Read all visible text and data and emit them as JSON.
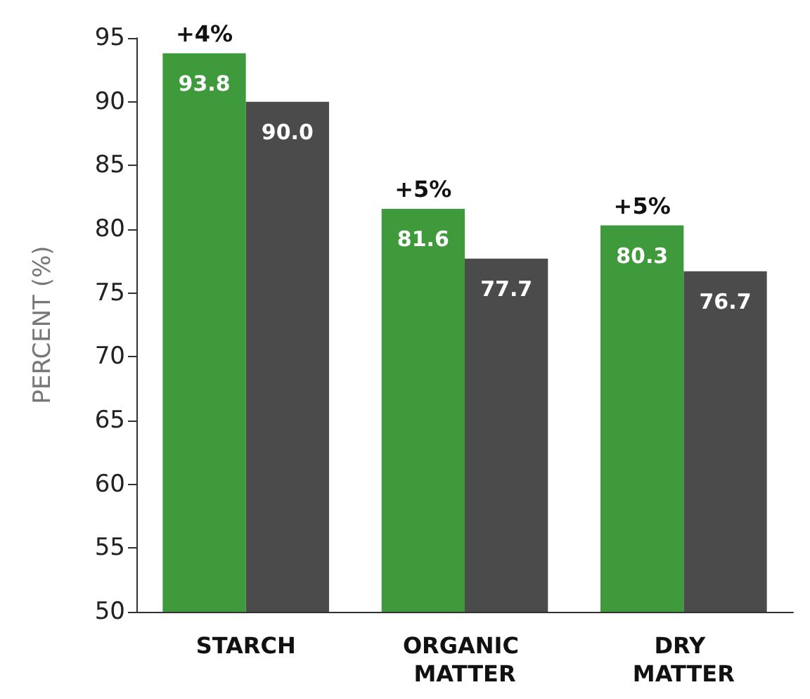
{
  "chart_data": {
    "type": "bar",
    "ylabel": "PERCENT (%)",
    "categories": [
      "STARCH",
      "ORGANIC MATTER",
      "DRY MATTER"
    ],
    "series": [
      {
        "color": "#3e9a3b",
        "values": [
          93.8,
          81.6,
          80.3
        ],
        "value_labels": [
          "93.8",
          "81.6",
          "80.3"
        ]
      },
      {
        "color": "#4b4b4b",
        "values": [
          90.0,
          77.7,
          76.7
        ],
        "value_labels": [
          "90.0",
          "77.7",
          "76.7"
        ]
      }
    ],
    "annotations": [
      {
        "text": "+4%",
        "x": "STARCH",
        "y": 93.8
      },
      {
        "text": "+5%",
        "x": "ORGANIC MATTER",
        "y": 81.6
      },
      {
        "text": "+5%",
        "x": "DRY MATTER",
        "y": 80.3
      }
    ],
    "ylim": [
      50,
      95
    ],
    "yticks": [
      50,
      55,
      60,
      65,
      70,
      75,
      80,
      85,
      90,
      95
    ],
    "grid": false
  }
}
